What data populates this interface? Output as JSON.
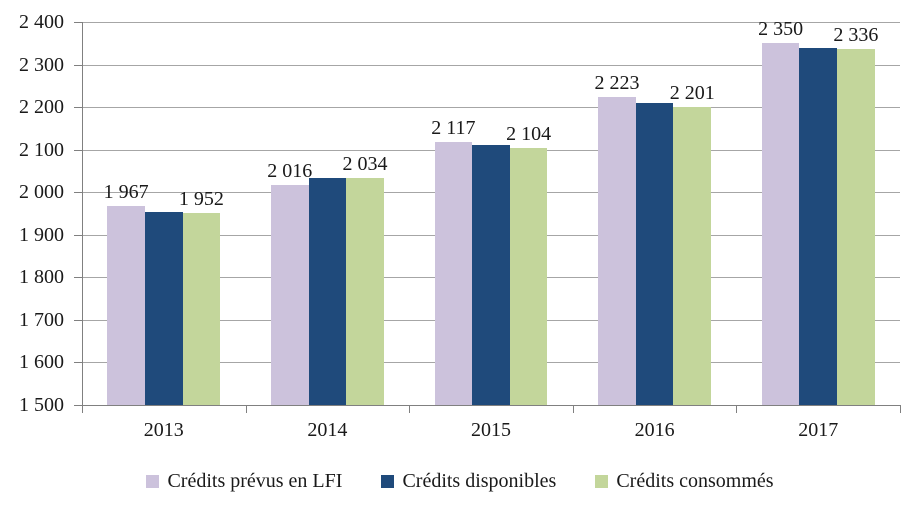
{
  "chart_data": {
    "type": "bar",
    "categories": [
      "2013",
      "2014",
      "2015",
      "2016",
      "2017"
    ],
    "series": [
      {
        "id": "credits-prevus-lfi",
        "name": "Crédits prévus en LFI",
        "color": "#CCC2DC",
        "values": [
          1967,
          2016,
          2117,
          2223,
          2350
        ],
        "data_labels": [
          "1 967",
          "2 016",
          "2 117",
          "2 223",
          "2 350"
        ]
      },
      {
        "id": "credits-disponibles",
        "name": "Crédits disponibles",
        "color": "#1F4A7B",
        "values": [
          1954,
          2033,
          2110,
          2209,
          2340
        ],
        "data_labels": null
      },
      {
        "id": "credits-consommes",
        "name": "Crédits consommés",
        "color": "#C3D69B",
        "values": [
          1952,
          2034,
          2104,
          2201,
          2336
        ],
        "data_labels": [
          "1 952",
          "2 034",
          "2 104",
          "2 201",
          "2 336"
        ]
      }
    ],
    "ylim": [
      1500,
      2400
    ],
    "ytick_step": 100,
    "ytick_labels_top_to_bottom": [
      "2 400",
      "2 300",
      "2 200",
      "2 100",
      "2 000",
      "1 900",
      "1 800",
      "1 700",
      "1 600",
      "1 500"
    ],
    "grid": "horizontal",
    "legend_position": "bottom"
  },
  "colors": {
    "gridline": "#A6A6A6",
    "axis": "#808080",
    "text": "#1A1A1A",
    "background": "#FFFFFF"
  }
}
